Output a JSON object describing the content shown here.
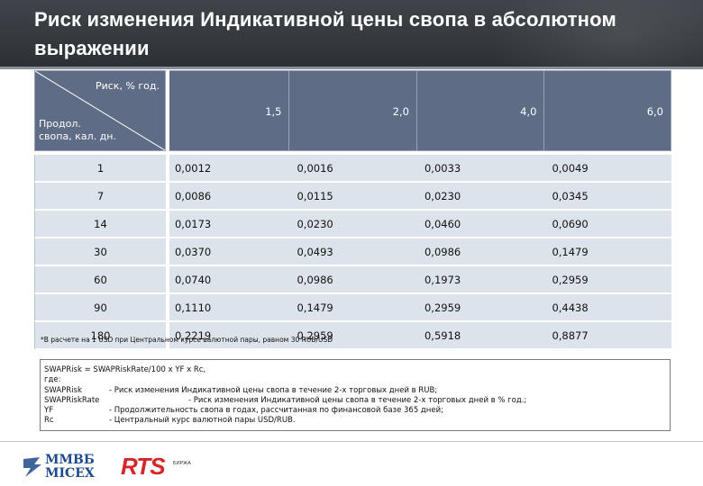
{
  "header": {
    "title": "Риск изменения Индикативной цены свопа в абсолютном выражении"
  },
  "table": {
    "corner_top_label": "Риск, % год.",
    "corner_bottom_label": [
      "Продол.",
      "свопа, кал. дн."
    ],
    "columns": [
      "1,5",
      "2,0",
      "4,0",
      "6,0"
    ],
    "rows": [
      {
        "duration": "1",
        "values": [
          "0,0012",
          "0,0016",
          "0,0033",
          "0,0049"
        ]
      },
      {
        "duration": "7",
        "values": [
          "0,0086",
          "0,0115",
          "0,0230",
          "0,0345"
        ]
      },
      {
        "duration": "14",
        "values": [
          "0,0173",
          "0,0230",
          "0,0460",
          "0,0690"
        ]
      },
      {
        "duration": "30",
        "values": [
          "0,0370",
          "0,0493",
          "0,0986",
          "0,1479"
        ]
      },
      {
        "duration": "60",
        "values": [
          "0,0740",
          "0,0986",
          "0,1973",
          "0,2959"
        ]
      },
      {
        "duration": "90",
        "values": [
          "0,1110",
          "0,1479",
          "0,2959",
          "0,4438"
        ]
      },
      {
        "duration": "180",
        "values": [
          "0,2219",
          "0,2959",
          "0,5918",
          "0,8877"
        ]
      }
    ]
  },
  "footnote": "*В расчете на 1 USD при Центральном курсе валютной пары, равном 30 RUB/USD",
  "formula": {
    "line1": "SWAPRisk = SWAPRiskRate/100 x YF x Rc,",
    "line2": "где:",
    "defs": [
      {
        "term": "SWAPRisk",
        "desc": "- Риск изменения Индикативной цены свопа в течение 2-х торговых дней в RUB;"
      },
      {
        "term": "SWAPRiskRate",
        "desc": "- Риск изменения Индикативной цены свопа в течение 2-х торговых дней в % год.;"
      },
      {
        "term": "YF",
        "desc": "- Продолжительность свопа в годах, рассчитанная по финансовой базе 365 дней;"
      },
      {
        "term": "Rc",
        "desc": "- Центральный курс валютной пары USD/RUB."
      }
    ]
  },
  "logos": {
    "micex_line1": "ММВБ",
    "micex_line2": "MICEX",
    "rts": "RTS",
    "rts_sub": "БИРЖА",
    "micex_color": "#1d4a8c",
    "rts_color": "#d6262a"
  }
}
